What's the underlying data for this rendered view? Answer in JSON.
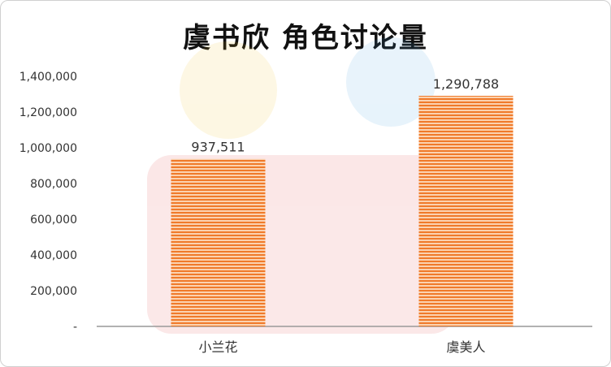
{
  "chart_data": {
    "type": "bar",
    "title": "虞书欣 角色讨论量",
    "categories": [
      "小兰花",
      "虞美人"
    ],
    "values": [
      937511,
      1290788
    ],
    "data_labels": [
      "937,511",
      "1,290,788"
    ],
    "yticks": [
      "-",
      "200,000",
      "400,000",
      "600,000",
      "800,000",
      "1,000,000",
      "1,200,000",
      "1,400,000"
    ],
    "ylim": [
      0,
      1400000
    ],
    "grid": false,
    "bar_color": "#f07a2a",
    "bar_stripe_color": "#fbd2b0"
  }
}
